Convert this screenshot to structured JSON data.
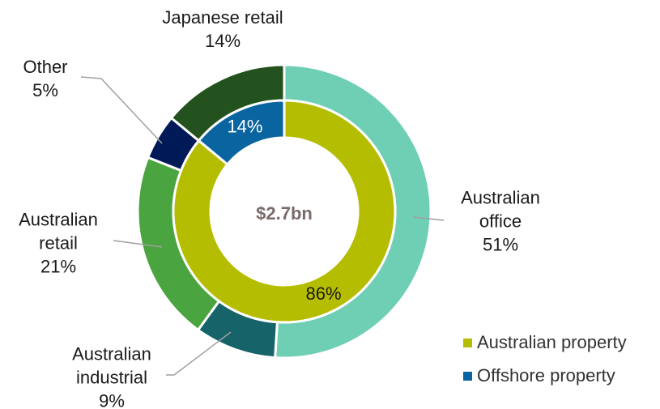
{
  "chart_data": {
    "type": "donut",
    "center_label": "$2.7bn",
    "series": [
      {
        "categories": [
          "Australian office",
          "Australian industrial",
          "Australian retail",
          "Other",
          "Japanese retail"
        ],
        "values": [
          51,
          9,
          21,
          5,
          14
        ],
        "value_labels": [
          "51%",
          "9%",
          "21%",
          "5%",
          "14%"
        ],
        "colors": [
          "#6fcfb5",
          "#17636a",
          "#4aa540",
          "#001a57",
          "#23521f"
        ]
      },
      {
        "categories": [
          "Australian property",
          "Offshore property"
        ],
        "values": [
          86,
          14
        ],
        "value_labels": [
          "86%",
          "14%"
        ],
        "colors": [
          "#b5bd00",
          "#0a64a0"
        ],
        "label_colors": [
          "#1a1a1a",
          "#ffffff"
        ]
      }
    ],
    "legend": "lower right"
  }
}
